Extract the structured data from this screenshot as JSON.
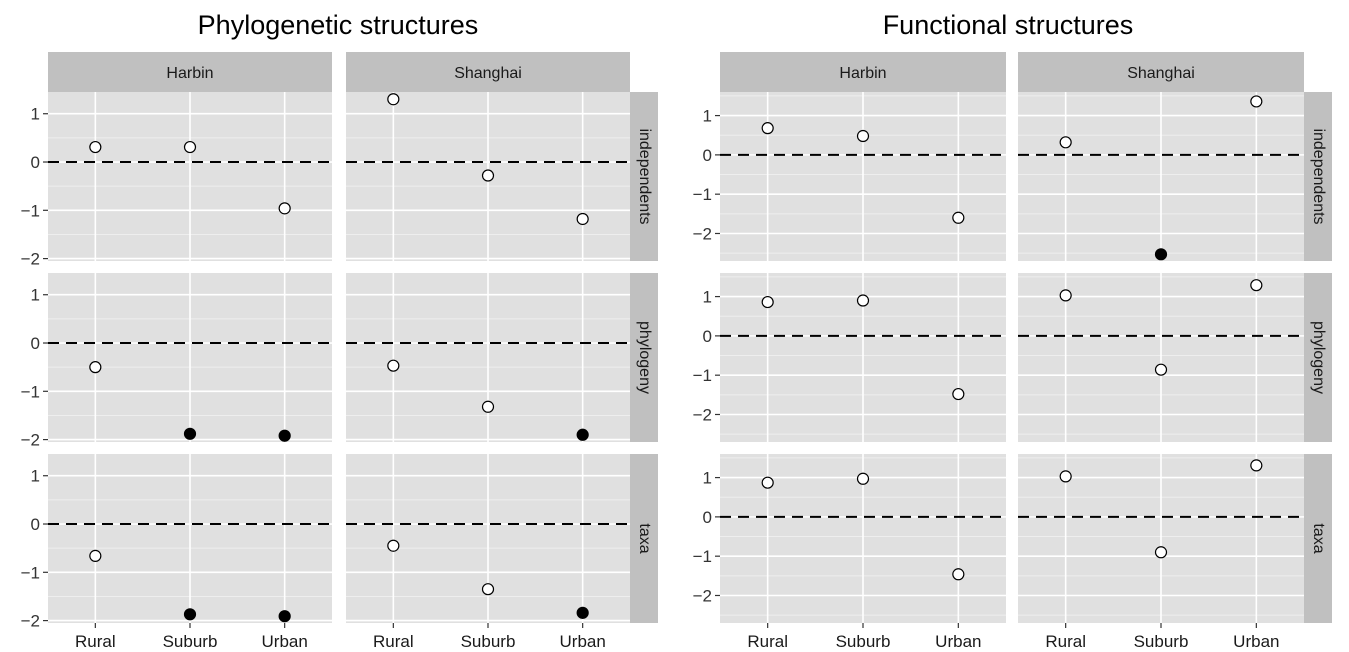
{
  "chart_data": [
    {
      "type": "scatter",
      "title": "Phylogenetic structures",
      "columns": [
        "Harbin",
        "Shanghai"
      ],
      "rows": [
        "independents",
        "phylogeny",
        "taxa"
      ],
      "categories": [
        "Rural",
        "Suburb",
        "Urban"
      ],
      "ylim": [
        -2.05,
        1.45
      ],
      "yticks": [
        -2,
        -1,
        0,
        1
      ],
      "reference_line": 0,
      "grid": true,
      "panels": [
        {
          "column": "Harbin",
          "row": "independents",
          "values": [
            0.31,
            0.31,
            -0.96
          ],
          "significant": [
            false,
            false,
            false
          ]
        },
        {
          "column": "Shanghai",
          "row": "independents",
          "values": [
            1.3,
            -0.28,
            -1.18
          ],
          "significant": [
            false,
            false,
            false
          ]
        },
        {
          "column": "Harbin",
          "row": "phylogeny",
          "values": [
            -0.5,
            -1.88,
            -1.92
          ],
          "significant": [
            false,
            true,
            true
          ]
        },
        {
          "column": "Shanghai",
          "row": "phylogeny",
          "values": [
            -0.47,
            -1.32,
            -1.9
          ],
          "significant": [
            false,
            false,
            true
          ]
        },
        {
          "column": "Harbin",
          "row": "taxa",
          "values": [
            -0.66,
            -1.87,
            -1.91
          ],
          "significant": [
            false,
            true,
            true
          ]
        },
        {
          "column": "Shanghai",
          "row": "taxa",
          "values": [
            -0.45,
            -1.35,
            -1.84
          ],
          "significant": [
            false,
            false,
            true
          ]
        }
      ]
    },
    {
      "type": "scatter",
      "title": "Functional structures",
      "columns": [
        "Harbin",
        "Shanghai"
      ],
      "rows": [
        "independents",
        "phylogeny",
        "taxa"
      ],
      "categories": [
        "Rural",
        "Suburb",
        "Urban"
      ],
      "ylim": [
        -2.7,
        1.6
      ],
      "yticks": [
        -2,
        -1,
        0,
        1
      ],
      "reference_line": 0,
      "grid": true,
      "panels": [
        {
          "column": "Harbin",
          "row": "independents",
          "values": [
            0.68,
            0.48,
            -1.6
          ],
          "significant": [
            false,
            false,
            false
          ]
        },
        {
          "column": "Shanghai",
          "row": "independents",
          "values": [
            0.32,
            -2.53,
            1.36
          ],
          "significant": [
            false,
            true,
            false
          ]
        },
        {
          "column": "Harbin",
          "row": "phylogeny",
          "values": [
            0.86,
            0.9,
            -1.48
          ],
          "significant": [
            false,
            false,
            false
          ]
        },
        {
          "column": "Shanghai",
          "row": "phylogeny",
          "values": [
            1.03,
            -0.86,
            1.29
          ],
          "significant": [
            false,
            false,
            false
          ]
        },
        {
          "column": "Harbin",
          "row": "taxa",
          "values": [
            0.87,
            0.97,
            -1.46
          ],
          "significant": [
            false,
            false,
            false
          ]
        },
        {
          "column": "Shanghai",
          "row": "taxa",
          "values": [
            1.03,
            -0.9,
            1.31
          ],
          "significant": [
            false,
            false,
            false
          ]
        }
      ]
    }
  ]
}
